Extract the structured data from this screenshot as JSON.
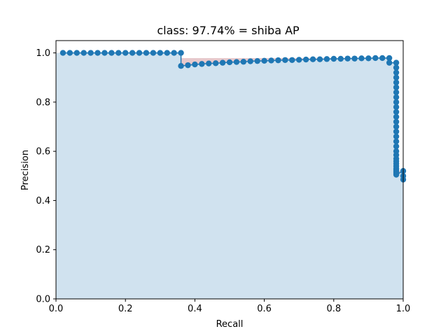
{
  "chart_data": {
    "type": "area",
    "title": "class: 97.74% = shiba AP",
    "xlabel": "Recall",
    "ylabel": "Precision",
    "xlim": [
      0.0,
      1.0
    ],
    "ylim": [
      0.0,
      1.05
    ],
    "xticks": [
      "0.0",
      "0.2",
      "0.4",
      "0.6",
      "0.8",
      "1.0"
    ],
    "yticks": [
      "0.0",
      "0.2",
      "0.4",
      "0.6",
      "0.8",
      "1.0"
    ],
    "grid": false,
    "colors": {
      "line": "#1f77b4",
      "fill": "#d0e2ef",
      "interp_fill": "#e7c9cc"
    },
    "series": [
      {
        "x": [
          0.02,
          0.04,
          0.06,
          0.08,
          0.1,
          0.12,
          0.14,
          0.16,
          0.18,
          0.2,
          0.22,
          0.24,
          0.26,
          0.28,
          0.3,
          0.32,
          0.34,
          0.36,
          0.36,
          0.38,
          0.4,
          0.42,
          0.44,
          0.46,
          0.48,
          0.5,
          0.52,
          0.54,
          0.56,
          0.58,
          0.6,
          0.62,
          0.64,
          0.66,
          0.68,
          0.7,
          0.72,
          0.74,
          0.76,
          0.78,
          0.8,
          0.82,
          0.84,
          0.86,
          0.88,
          0.9,
          0.92,
          0.94,
          0.96,
          0.96,
          0.98,
          0.98,
          0.98,
          0.98,
          0.98,
          0.98,
          0.98,
          0.98,
          0.98,
          0.98,
          0.98,
          0.98,
          0.98,
          0.98,
          0.98,
          0.98,
          0.98,
          0.98,
          0.98,
          0.98,
          0.98,
          0.98,
          0.98,
          0.98,
          0.98,
          0.98,
          0.98,
          0.98,
          0.98,
          0.98,
          1.0,
          1.0,
          1.0
        ],
        "y": [
          1.0,
          1.0,
          1.0,
          1.0,
          1.0,
          1.0,
          1.0,
          1.0,
          1.0,
          1.0,
          1.0,
          1.0,
          1.0,
          1.0,
          1.0,
          1.0,
          1.0,
          1.0,
          0.947,
          0.95,
          0.953,
          0.955,
          0.957,
          0.958,
          0.96,
          0.962,
          0.963,
          0.964,
          0.966,
          0.967,
          0.968,
          0.969,
          0.97,
          0.971,
          0.971,
          0.972,
          0.973,
          0.974,
          0.974,
          0.975,
          0.976,
          0.976,
          0.977,
          0.977,
          0.978,
          0.978,
          0.979,
          0.979,
          0.979,
          0.96,
          0.96,
          0.94,
          0.92,
          0.9,
          0.88,
          0.86,
          0.84,
          0.82,
          0.8,
          0.78,
          0.76,
          0.74,
          0.72,
          0.7,
          0.68,
          0.66,
          0.64,
          0.62,
          0.6,
          0.585,
          0.57,
          0.56,
          0.55,
          0.54,
          0.53,
          0.525,
          0.52,
          0.515,
          0.51,
          0.505,
          0.52,
          0.5,
          0.485
        ]
      }
    ]
  }
}
